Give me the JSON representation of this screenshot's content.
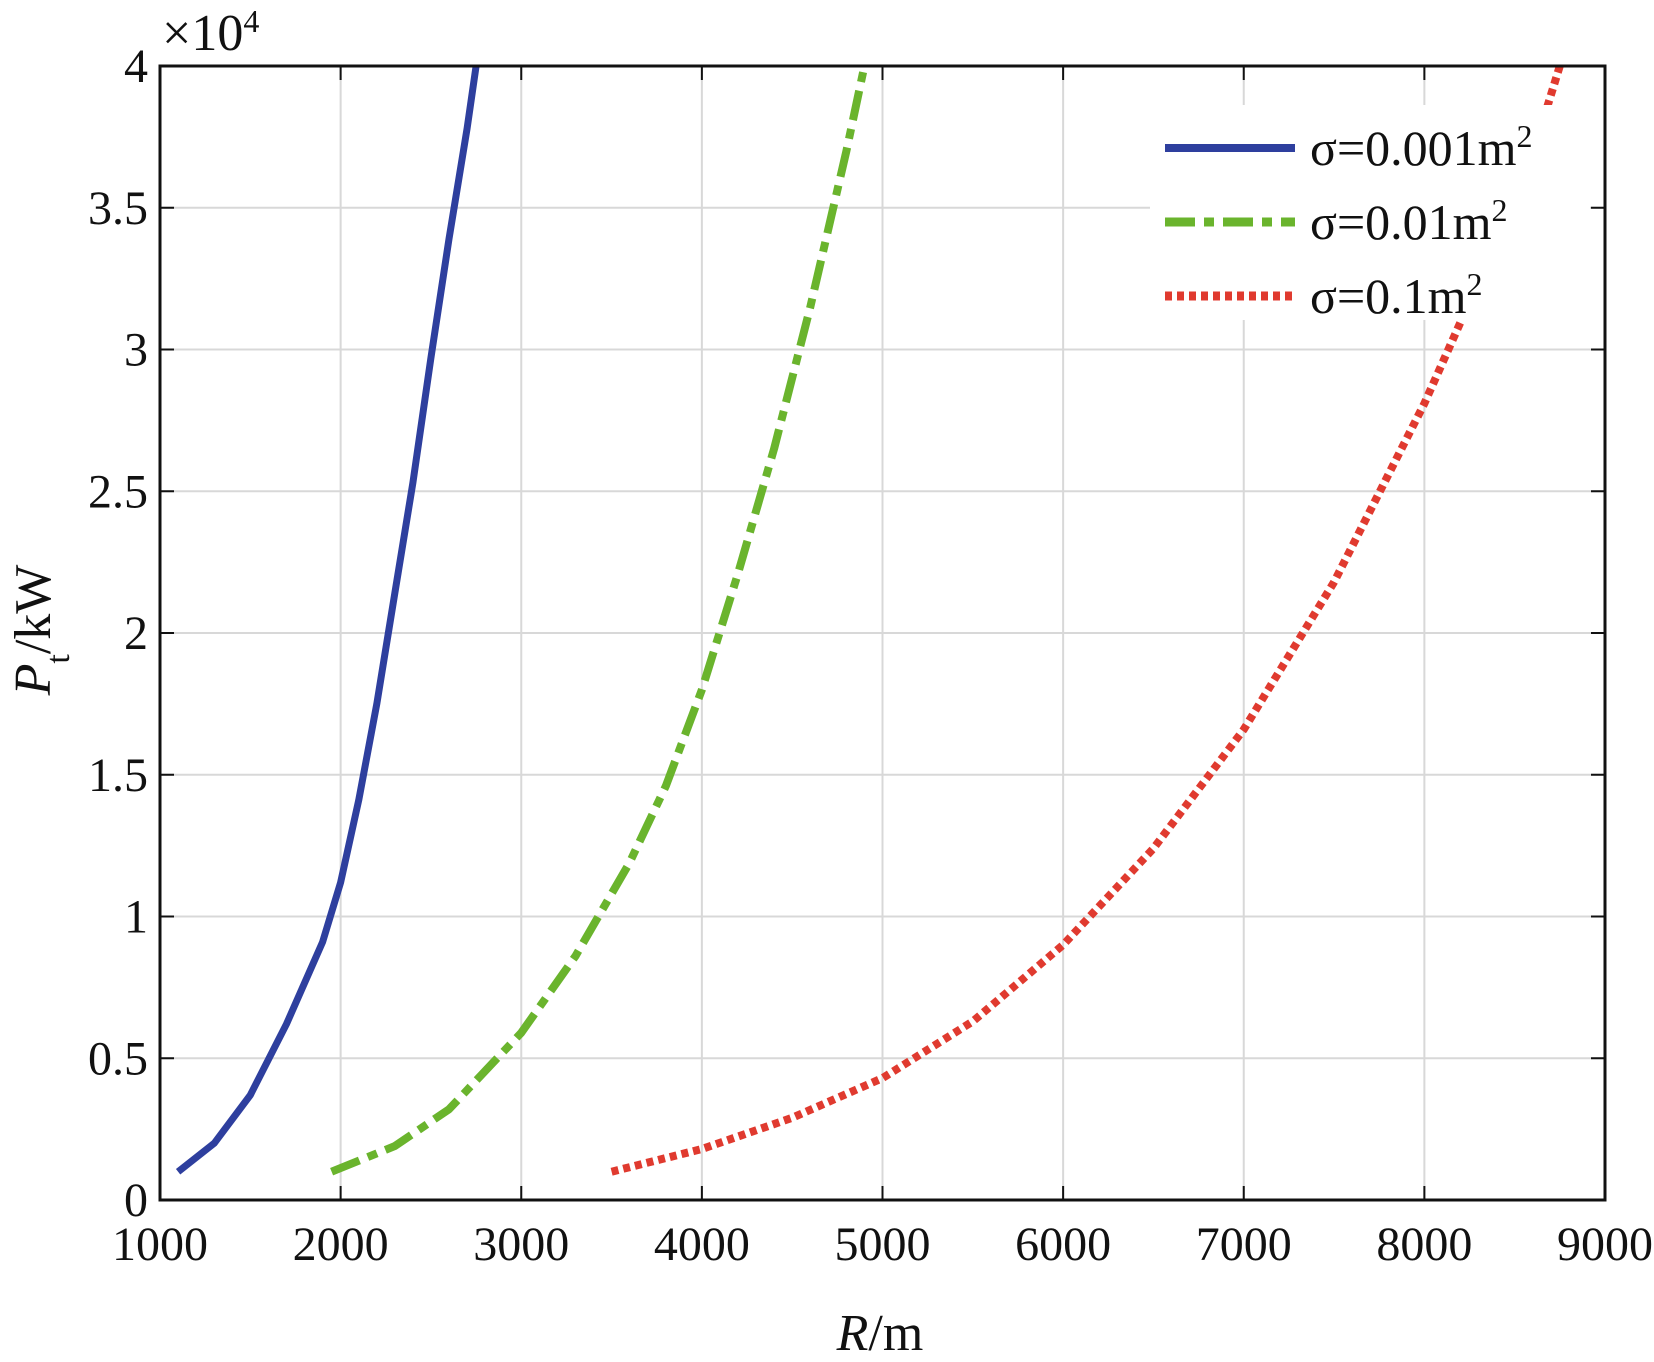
{
  "chart_data": {
    "type": "line",
    "xlabel": {
      "var": "R",
      "unit": "/m"
    },
    "ylabel": {
      "var": "P",
      "sub": "t",
      "unit": "/kW"
    },
    "y_multiplier": {
      "base": "×10",
      "exp": "4"
    },
    "xlim": [
      1000,
      9000
    ],
    "ylim": [
      0,
      40000
    ],
    "x_ticks": [
      1000,
      2000,
      3000,
      4000,
      5000,
      6000,
      7000,
      8000,
      9000
    ],
    "y_ticks": [
      0,
      5000,
      10000,
      15000,
      20000,
      25000,
      30000,
      35000,
      40000
    ],
    "x_tick_labels": [
      "1000",
      "2000",
      "3000",
      "4000",
      "5000",
      "6000",
      "7000",
      "8000",
      "9000"
    ],
    "y_tick_labels": [
      "0",
      "0.5",
      "1",
      "1.5",
      "2",
      "2.5",
      "3",
      "3.5",
      "4"
    ],
    "grid": true,
    "legend_position": "top-right",
    "series": [
      {
        "name": "σ=0.001m",
        "name_sup": "2",
        "color": "#2e3f9e",
        "style": "solid",
        "x": [
          1100,
          1300,
          1500,
          1700,
          1900,
          2000,
          2100,
          2200,
          2300,
          2400,
          2500,
          2600,
          2700,
          2750
        ],
        "y": [
          1000,
          2000,
          3700,
          6200,
          9100,
          11200,
          14100,
          17500,
          21400,
          25300,
          29700,
          33900,
          37800,
          40000
        ]
      },
      {
        "name": "σ=0.01m",
        "name_sup": "2",
        "color": "#6ab42d",
        "style": "dashdot",
        "x": [
          1950,
          2300,
          2600,
          3000,
          3300,
          3600,
          3800,
          4000,
          4200,
          4400,
          4600,
          4800,
          4900
        ],
        "y": [
          1000,
          1900,
          3200,
          5900,
          8600,
          11900,
          14600,
          18000,
          22100,
          26500,
          31500,
          37000,
          40000
        ]
      },
      {
        "name": "σ=0.1m",
        "name_sup": "2",
        "color": "#e03a2f",
        "style": "dotted",
        "x": [
          3500,
          4000,
          4500,
          5000,
          5500,
          6000,
          6500,
          7000,
          7500,
          8000,
          8300,
          8600,
          8750
        ],
        "y": [
          1000,
          1800,
          2900,
          4300,
          6300,
          9000,
          12400,
          16600,
          21800,
          28100,
          32400,
          36900,
          40000
        ]
      }
    ]
  }
}
